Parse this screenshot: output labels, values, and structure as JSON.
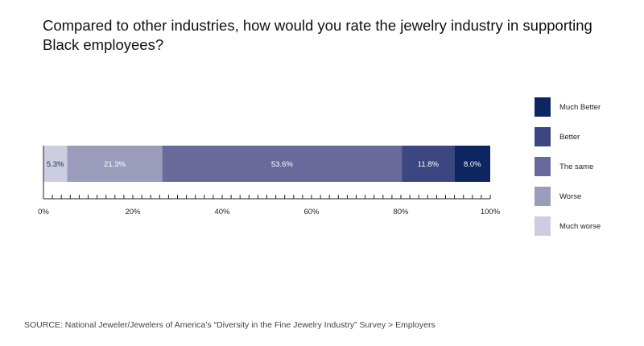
{
  "title": "Compared to other industries, how would you rate the jewelry industry in supporting Black employees?",
  "source": "SOURCE: National Jeweler/Jewelers of America’s “Diversity in the Fine Jewelry Industry” Survey > Employers",
  "chart_data": {
    "type": "bar",
    "orientation": "horizontal",
    "stacked": true,
    "xlim": [
      0,
      100
    ],
    "tick_labels": [
      "0%",
      "20%",
      "40%",
      "60%",
      "80%",
      "100%"
    ],
    "minor_tick_step": 2,
    "legend_position": "right",
    "series": [
      {
        "name": "Much worse",
        "value": 5.3,
        "label": "5.3%",
        "color": "#cdcde0",
        "label_color": "#1d2f6a"
      },
      {
        "name": "Worse",
        "value": 21.3,
        "label": "21.3%",
        "color": "#9b9cbc",
        "label_color": "#ffffff"
      },
      {
        "name": "The same",
        "value": 53.6,
        "label": "53.6%",
        "color": "#69699b",
        "label_color": "#ffffff"
      },
      {
        "name": "Better",
        "value": 11.8,
        "label": "11.8%",
        "color": "#3c4680",
        "label_color": "#ffffff"
      },
      {
        "name": "Much Better",
        "value": 8.0,
        "label": "8.0%",
        "color": "#0d2560",
        "label_color": "#ffffff"
      }
    ],
    "legend_order": [
      "Much Better",
      "Better",
      "The same",
      "Worse",
      "Much worse"
    ]
  }
}
